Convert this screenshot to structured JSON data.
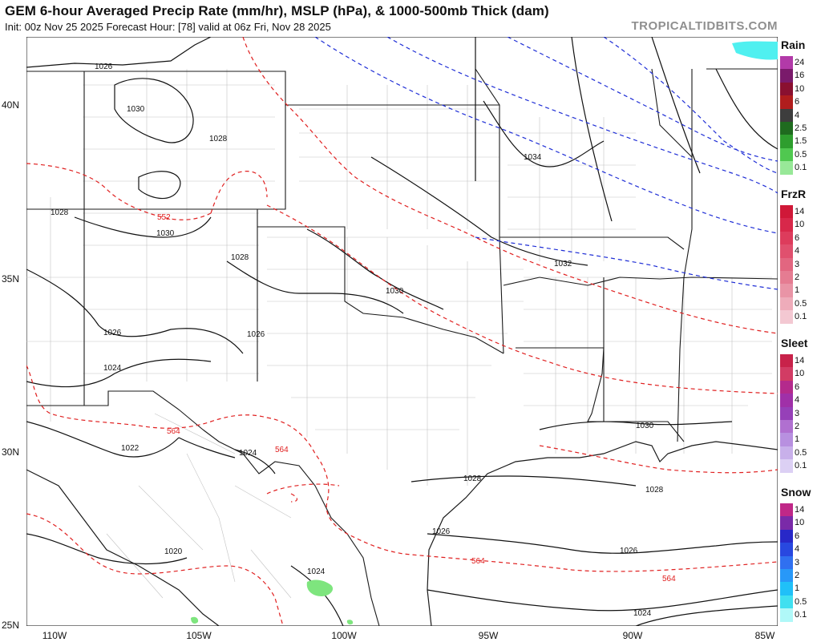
{
  "header": {
    "title": "GEM 6-hour Averaged Precip Rate (mm/hr), MSLP (hPa), & 1000-500mb Thick (dam)",
    "subtitle": "Init: 00z Nov 25 2025   Forecast Hour: [78]   valid at 06z Fri, Nov 28 2025",
    "brand": "TROPICALTIDBITS.COM"
  },
  "map": {
    "lat_labels": [
      "40N",
      "35N",
      "30N",
      "25N"
    ],
    "lon_labels": [
      "110W",
      "105W",
      "100W",
      "95W",
      "90W",
      "85W"
    ],
    "isobar_labels": [
      "1026",
      "1030",
      "1028",
      "1028",
      "1030",
      "1028",
      "1026",
      "1024",
      "1026",
      "1034",
      "1032",
      "1030",
      "1030",
      "1028",
      "1028",
      "1022",
      "1024",
      "1026",
      "1020",
      "1024",
      "1026",
      "1024"
    ],
    "thickness_labels": [
      "552",
      "564",
      "564",
      "564",
      "564"
    ],
    "colors": {
      "isobar": "#111111",
      "thickness_warm": "#e02020",
      "thickness_cold": "#1f2ed6",
      "state_border": "#222222",
      "county_border": "#b8b8b8",
      "rain_light": "#7ee57e",
      "snow_light": "#4ff0f0"
    }
  },
  "legend": [
    {
      "title": "Rain",
      "ticks": [
        "24",
        "16",
        "10",
        "6",
        "4",
        "2.5",
        "1.5",
        "0.5",
        "0.1"
      ],
      "colors": [
        "#b23aa8",
        "#7a1a6b",
        "#8a1030",
        "#b01d1d",
        "#3d3d3d",
        "#1f6b1f",
        "#2e9e2e",
        "#50c850",
        "#98e898"
      ]
    },
    {
      "title": "FrzR",
      "ticks": [
        "14",
        "10",
        "6",
        "4",
        "3",
        "2",
        "1",
        "0.5",
        "0.1"
      ],
      "colors": [
        "#d01838",
        "#d8284a",
        "#dd3c5c",
        "#e0506e",
        "#e26680",
        "#e57c92",
        "#e994a6",
        "#eeacba",
        "#f3c8d2"
      ]
    },
    {
      "title": "Sleet",
      "ticks": [
        "14",
        "10",
        "6",
        "4",
        "3",
        "2",
        "1",
        "0.5",
        "0.1"
      ],
      "colors": [
        "#c8224a",
        "#d23c64",
        "#b42a8c",
        "#a030a8",
        "#9640b8",
        "#b070d0",
        "#b890e0",
        "#c8b0ea",
        "#dcd0f4"
      ]
    },
    {
      "title": "Snow",
      "ticks": [
        "14",
        "10",
        "6",
        "4",
        "3",
        "2",
        "1",
        "0.5",
        "0.1"
      ],
      "colors": [
        "#c02888",
        "#7a2aa8",
        "#2828c8",
        "#2848e0",
        "#3070f0",
        "#2898f8",
        "#20c0f8",
        "#40e0f0",
        "#b0f8f8"
      ]
    }
  ]
}
